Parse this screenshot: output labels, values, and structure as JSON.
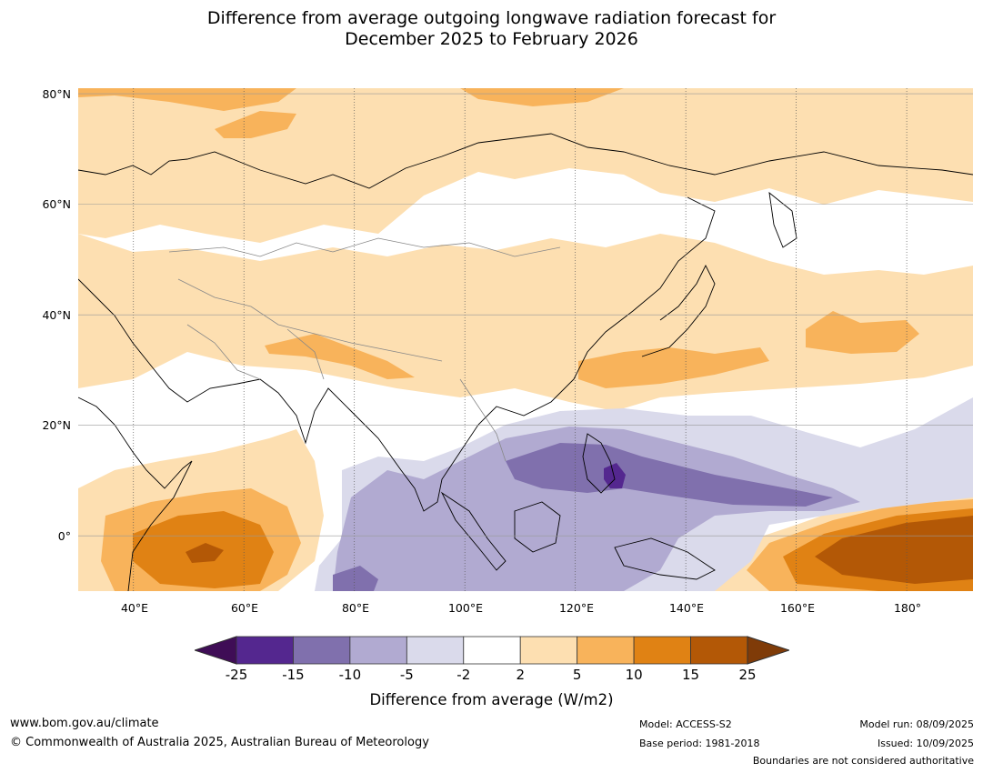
{
  "title": {
    "line1": "Difference from average outgoing longwave radiation forecast for",
    "line2": "December 2025 to February 2026"
  },
  "map": {
    "lat_labels": [
      "80°N",
      "60°N",
      "40°N",
      "20°N",
      "0°"
    ],
    "lon_labels": [
      "40°E",
      "60°E",
      "80°E",
      "100°E",
      "120°E",
      "140°E",
      "160°E",
      "180°"
    ],
    "extent": {
      "lon_min": 30,
      "lon_max": 192,
      "lat_min": -10,
      "lat_max": 81
    }
  },
  "legend": {
    "ticks": [
      "-25",
      "-15",
      "-10",
      "-5",
      "-2",
      "2",
      "5",
      "10",
      "15",
      "25"
    ],
    "colors": [
      "#3f0d56",
      "#54278f",
      "#8070ad",
      "#b1aad1",
      "#dadaeb",
      "#ffffff",
      "#fddfb1",
      "#f8b35b",
      "#e08214",
      "#b35806",
      "#7f3b08"
    ],
    "label": "Difference from average (W/m2)"
  },
  "footer": {
    "url": "www.bom.gov.au/climate",
    "copyright": "© Commonwealth of Australia 2025, Australian Bureau of Meteorology",
    "model": "Model: ACCESS-S2",
    "base_period": "Base period: 1981-2018",
    "model_run": "Model run: 08/09/2025",
    "issued": "Issued: 10/09/2025",
    "disclaimer": "Boundaries are not considered authoritative"
  }
}
